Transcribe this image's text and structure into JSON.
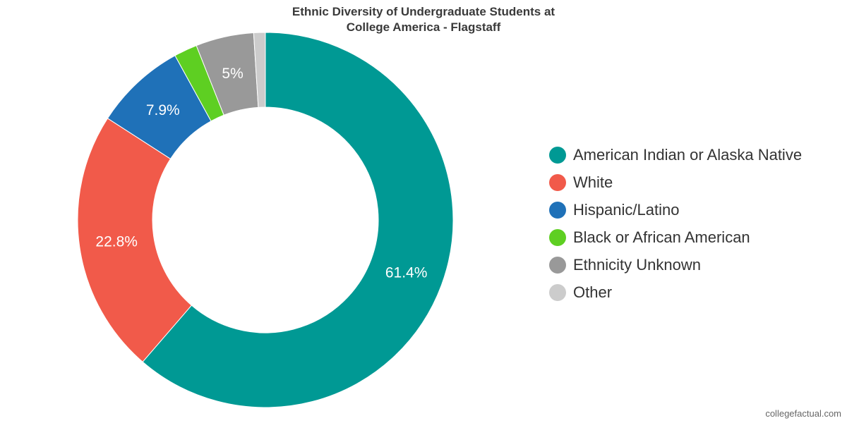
{
  "chart_data": {
    "type": "pie",
    "variant": "donut",
    "title": "Ethnic Diversity of Undergraduate Students at College America - Flagstaff",
    "title_lines": [
      "Ethnic Diversity of Undergraduate Students at",
      "College America - Flagstaff"
    ],
    "legend_position": "right",
    "categories": [
      "American Indian or Alaska Native",
      "White",
      "Hispanic/Latino",
      "Black or African American",
      "Ethnicity Unknown",
      "Other"
    ],
    "values": [
      61.4,
      22.8,
      7.9,
      2.0,
      5,
      1.0
    ],
    "data_labels": [
      "61.4%",
      "22.8%",
      "7.9%",
      "",
      "5%",
      ""
    ],
    "colors": [
      "#009994",
      "#F15A4A",
      "#1F71B8",
      "#5ECF22",
      "#999999",
      "#CCCCCC"
    ]
  },
  "credit": "collegefactual.com"
}
